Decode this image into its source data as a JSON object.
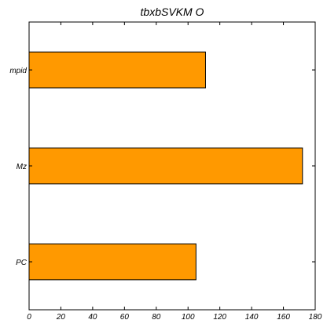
{
  "chart_data": {
    "type": "bar",
    "orientation": "horizontal",
    "title": "tbxbSVKM   O",
    "xlabel": "",
    "ylabel": "",
    "categories": [
      "PC",
      "Mz",
      "mpid"
    ],
    "values": [
      105,
      172,
      111
    ],
    "xlim": [
      0,
      180
    ],
    "xticks": [
      0,
      20,
      40,
      60,
      80,
      100,
      120,
      140,
      160,
      180
    ],
    "grid": false,
    "legend": "none",
    "colors": {
      "bar_fill": "#ff9900",
      "bar_edge": "#000000",
      "axis": "#000000",
      "background": "#ffffff"
    }
  }
}
